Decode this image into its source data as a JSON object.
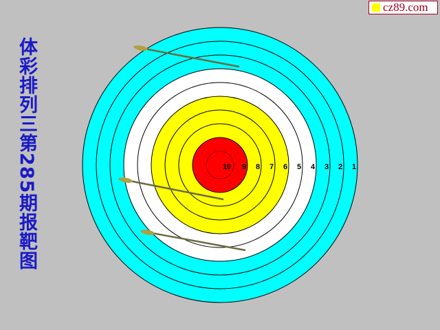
{
  "title": "体彩排列三第285期报靶图",
  "brand": {
    "text": "cz89.com",
    "mark_color": "#ffff00"
  },
  "target": {
    "ring_labels": [
      "10",
      "9",
      "8",
      "7",
      "6",
      "5",
      "4",
      "3",
      "2",
      "1"
    ],
    "ring_colors": {
      "1": "#00ffff",
      "2": "#00ffff",
      "3": "#00ffff",
      "4": "#ffffff",
      "5": "#ffffff",
      "6": "#ffff00",
      "7": "#ffff00",
      "8": "#ffff00",
      "9": "#ff0000",
      "10": "#ff0000"
    }
  },
  "arrows": [
    {
      "name": "arrow-1"
    },
    {
      "name": "arrow-2"
    },
    {
      "name": "arrow-3"
    }
  ],
  "background_color": "#c0c0c0"
}
